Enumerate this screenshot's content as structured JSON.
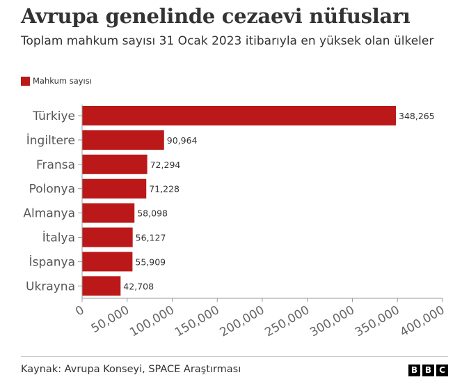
{
  "title": "Avrupa genelinde cezaevi nüfusları",
  "subtitle": "Toplam mahkum sayısı 31 Ocak 2023 itibarıyla en yüksek olan ülkeler",
  "source": "Kaynak: Avrupa Konseyi, SPACE Araştırması",
  "logo": [
    "B",
    "B",
    "C"
  ],
  "colors": {
    "bar": "#bb1919",
    "axis": "#999999",
    "text": "#333333"
  },
  "chart_data": {
    "type": "bar",
    "orientation": "horizontal",
    "categories": [
      "Türkiye",
      "İngiltere",
      "Fransa",
      "Polonya",
      "Almanya",
      "İtalya",
      "İspanya",
      "Ukrayna"
    ],
    "series": [
      {
        "name": "Mahkum sayısı",
        "values": [
          348265,
          90964,
          72294,
          71228,
          58098,
          56127,
          55909,
          42708
        ],
        "value_labels": [
          "348,265",
          "90,964",
          "72,294",
          "71,228",
          "58,098",
          "56,127",
          "55,909",
          "42,708"
        ]
      }
    ],
    "xlim": [
      0,
      400000
    ],
    "xticks": [
      0,
      50000,
      100000,
      150000,
      200000,
      250000,
      300000,
      350000,
      400000
    ],
    "xtick_labels": [
      "0",
      "50,000",
      "100,000",
      "150,000",
      "200,000",
      "250,000",
      "300,000",
      "350,000",
      "400,000"
    ],
    "grid": false,
    "legend": "top-left"
  }
}
